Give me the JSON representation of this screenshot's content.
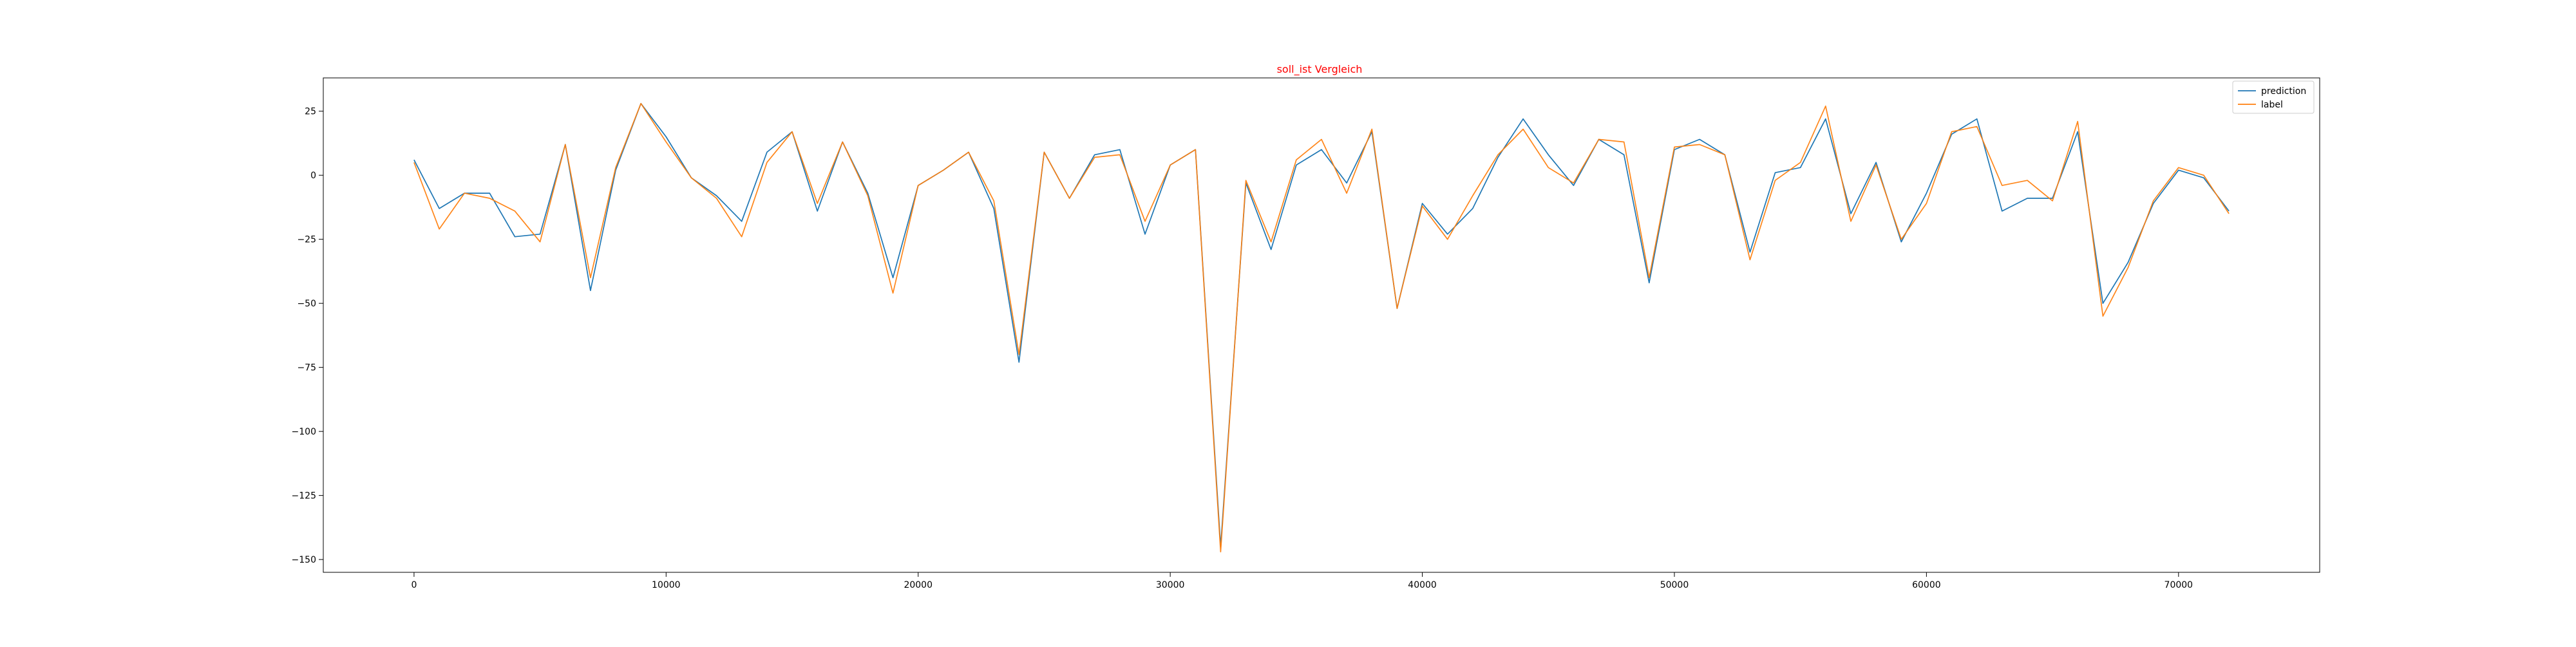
{
  "chart_data": {
    "type": "line",
    "title": "soll_ist Vergleich",
    "title_color": "#ff0000",
    "xlabel": "",
    "ylabel": "",
    "xlim": [
      -3600,
      75600
    ],
    "ylim": [
      -155,
      38
    ],
    "x_ticks": [
      0,
      10000,
      20000,
      30000,
      40000,
      50000,
      60000,
      70000
    ],
    "y_ticks": [
      25,
      0,
      -25,
      -50,
      -75,
      -100,
      -125,
      -150
    ],
    "grid": false,
    "legend_position": "top-right",
    "x": [
      0,
      1000,
      2000,
      3000,
      4000,
      5000,
      6000,
      7000,
      8000,
      9000,
      10000,
      11000,
      12000,
      13000,
      14000,
      15000,
      16000,
      17000,
      18000,
      19000,
      20000,
      21000,
      22000,
      23000,
      24000,
      25000,
      26000,
      27000,
      28000,
      29000,
      30000,
      31000,
      32000,
      33000,
      34000,
      35000,
      36000,
      37000,
      38000,
      39000,
      40000,
      41000,
      42000,
      43000,
      44000,
      45000,
      46000,
      47000,
      48000,
      49000,
      50000,
      51000,
      52000,
      53000,
      54000,
      55000,
      56000,
      57000,
      58000,
      59000,
      60000,
      61000,
      62000,
      63000,
      64000,
      65000,
      66000,
      67000,
      68000,
      69000,
      70000,
      71000,
      72000
    ],
    "series": [
      {
        "name": "prediction",
        "color": "#1f77b4",
        "values": [
          6,
          -13,
          -7,
          -7,
          -24,
          -23,
          12,
          -45,
          2,
          28,
          15,
          -1,
          -8,
          -18,
          9,
          17,
          -14,
          13,
          -7,
          -40,
          -4,
          2,
          9,
          -13,
          -73,
          9,
          -9,
          8,
          10,
          -23,
          4,
          10,
          -145,
          -3,
          -29,
          4,
          10,
          -3,
          17,
          -52,
          -11,
          -23,
          -13,
          7,
          22,
          8,
          -4,
          14,
          8,
          -42,
          10,
          14,
          8,
          -30,
          1,
          3,
          22,
          -15,
          5,
          -26,
          -7,
          16,
          22,
          -14,
          -9,
          -9,
          17,
          -50,
          -34,
          -11,
          2,
          -1,
          -14
        ]
      },
      {
        "name": "label",
        "color": "#ff7f0e",
        "values": [
          5,
          -21,
          -7,
          -9,
          -14,
          -26,
          12,
          -40,
          3,
          28,
          13,
          -1,
          -9,
          -24,
          5,
          17,
          -11,
          13,
          -8,
          -46,
          -4,
          2,
          9,
          -10,
          -70,
          9,
          -9,
          7,
          8,
          -18,
          4,
          10,
          -147,
          -2,
          -26,
          6,
          14,
          -7,
          18,
          -52,
          -12,
          -25,
          -8,
          8,
          18,
          3,
          -3,
          14,
          13,
          -40,
          11,
          12,
          8,
          -33,
          -2,
          5,
          27,
          -18,
          4,
          -25,
          -11,
          17,
          19,
          -4,
          -2,
          -10,
          21,
          -55,
          -36,
          -10,
          3,
          0,
          -15
        ]
      }
    ]
  }
}
